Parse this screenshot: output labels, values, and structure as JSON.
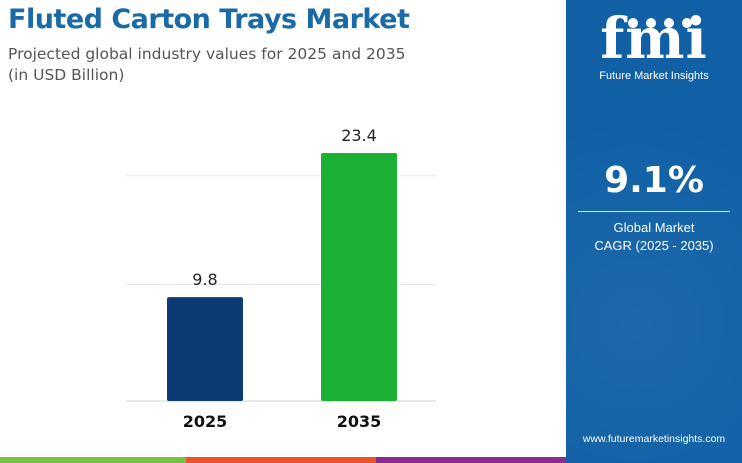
{
  "header": {
    "title": "Fluted Carton Trays Market",
    "subtitle_line1": "Projected global industry values for 2025 and 2035",
    "subtitle_line2": "(in USD Billion)"
  },
  "chart_data": {
    "type": "bar",
    "categories": [
      "2025",
      "2035"
    ],
    "values": [
      9.8,
      23.4
    ],
    "value_labels": [
      "9.8",
      "23.4"
    ],
    "colors": [
      "#0b3a75",
      "#1cb034"
    ],
    "ylim": [
      0,
      25
    ],
    "grid": true,
    "legend": "none"
  },
  "side_panel": {
    "logo_text": "fmi",
    "logo_subtitle": "Future Market Insights",
    "cagr_value": "9.1%",
    "cagr_label_line1": "Global Market",
    "cagr_label_line2": "CAGR (2025 - 2035)",
    "website": "www.futuremarketinsights.com",
    "background_color": "#1160a6"
  },
  "footer": {
    "bar_colors": [
      "#7ac143",
      "#e8542c",
      "#8a2b8d"
    ]
  }
}
